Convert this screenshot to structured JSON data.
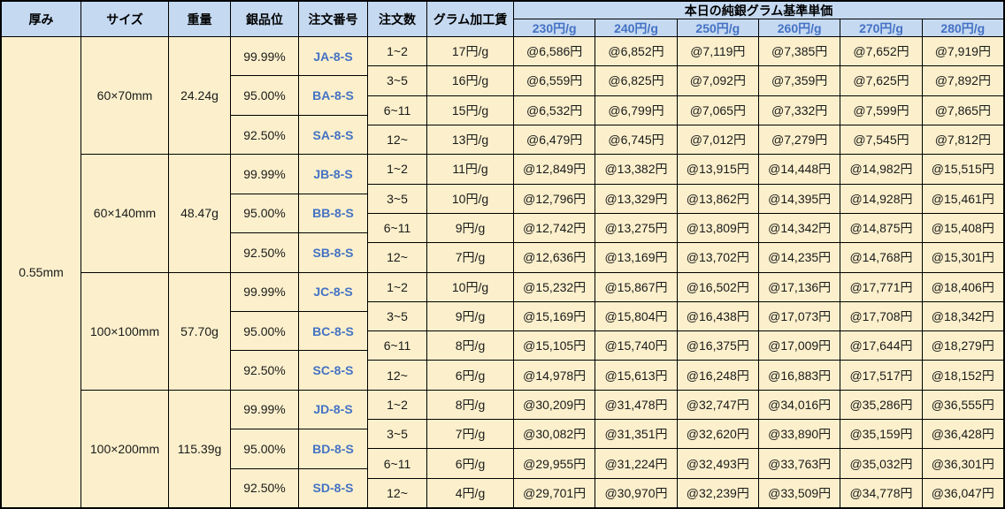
{
  "colors": {
    "header_bg": "#c5d9f1",
    "cell_bg": "#fcf0cc",
    "accent_blue_text": "#4472c4",
    "border": "#000000"
  },
  "table": {
    "headers": {
      "thickness": "厚み",
      "size": "サイズ",
      "weight": "重量",
      "grade": "銀品位",
      "order_no": "注文番号",
      "order_qty": "注文数",
      "fee": "グラム加工賃",
      "price_group": "本日の純銀グラム基準単価",
      "price_columns": [
        "230円/g",
        "240円/g",
        "250円/g",
        "260円/g",
        "270円/g",
        "280円/g"
      ]
    },
    "thickness_value": "0.55mm",
    "blocks": [
      {
        "size": "60×70mm",
        "weight": "24.24g",
        "grades": [
          {
            "purity": "99.99%",
            "order_no": "JA-8-S"
          },
          {
            "purity": "95.00%",
            "order_no": "BA-8-S"
          },
          {
            "purity": "92.50%",
            "order_no": "SA-8-S"
          }
        ],
        "rows": [
          {
            "qty": "1~2",
            "fee": "17円/g",
            "prices": [
              "@6,586円",
              "@6,852円",
              "@7,119円",
              "@7,385円",
              "@7,652円",
              "@7,919円"
            ]
          },
          {
            "qty": "3~5",
            "fee": "16円/g",
            "prices": [
              "@6,559円",
              "@6,825円",
              "@7,092円",
              "@7,359円",
              "@7,625円",
              "@7,892円"
            ]
          },
          {
            "qty": "6~11",
            "fee": "15円/g",
            "prices": [
              "@6,532円",
              "@6,799円",
              "@7,065円",
              "@7,332円",
              "@7,599円",
              "@7,865円"
            ]
          },
          {
            "qty": "12~",
            "fee": "13円/g",
            "prices": [
              "@6,479円",
              "@6,745円",
              "@7,012円",
              "@7,279円",
              "@7,545円",
              "@7,812円"
            ]
          }
        ]
      },
      {
        "size": "60×140mm",
        "weight": "48.47g",
        "grades": [
          {
            "purity": "99.99%",
            "order_no": "JB-8-S"
          },
          {
            "purity": "95.00%",
            "order_no": "BB-8-S"
          },
          {
            "purity": "92.50%",
            "order_no": "SB-8-S"
          }
        ],
        "rows": [
          {
            "qty": "1~2",
            "fee": "11円/g",
            "prices": [
              "@12,849円",
              "@13,382円",
              "@13,915円",
              "@14,448円",
              "@14,982円",
              "@15,515円"
            ]
          },
          {
            "qty": "3~5",
            "fee": "10円/g",
            "prices": [
              "@12,796円",
              "@13,329円",
              "@13,862円",
              "@14,395円",
              "@14,928円",
              "@15,461円"
            ]
          },
          {
            "qty": "6~11",
            "fee": "9円/g",
            "prices": [
              "@12,742円",
              "@13,275円",
              "@13,809円",
              "@14,342円",
              "@14,875円",
              "@15,408円"
            ]
          },
          {
            "qty": "12~",
            "fee": "7円/g",
            "prices": [
              "@12,636円",
              "@13,169円",
              "@13,702円",
              "@14,235円",
              "@14,768円",
              "@15,301円"
            ]
          }
        ]
      },
      {
        "size": "100×100mm",
        "weight": "57.70g",
        "grades": [
          {
            "purity": "99.99%",
            "order_no": "JC-8-S"
          },
          {
            "purity": "95.00%",
            "order_no": "BC-8-S"
          },
          {
            "purity": "92.50%",
            "order_no": "SC-8-S"
          }
        ],
        "rows": [
          {
            "qty": "1~2",
            "fee": "10円/g",
            "prices": [
              "@15,232円",
              "@15,867円",
              "@16,502円",
              "@17,136円",
              "@17,771円",
              "@18,406円"
            ]
          },
          {
            "qty": "3~5",
            "fee": "9円/g",
            "prices": [
              "@15,169円",
              "@15,804円",
              "@16,438円",
              "@17,073円",
              "@17,708円",
              "@18,342円"
            ]
          },
          {
            "qty": "6~11",
            "fee": "8円/g",
            "prices": [
              "@15,105円",
              "@15,740円",
              "@16,375円",
              "@17,009円",
              "@17,644円",
              "@18,279円"
            ]
          },
          {
            "qty": "12~",
            "fee": "6円/g",
            "prices": [
              "@14,978円",
              "@15,613円",
              "@16,248円",
              "@16,883円",
              "@17,517円",
              "@18,152円"
            ]
          }
        ]
      },
      {
        "size": "100×200mm",
        "weight": "115.39g",
        "grades": [
          {
            "purity": "99.99%",
            "order_no": "JD-8-S"
          },
          {
            "purity": "95.00%",
            "order_no": "BD-8-S"
          },
          {
            "purity": "92.50%",
            "order_no": "SD-8-S"
          }
        ],
        "rows": [
          {
            "qty": "1~2",
            "fee": "8円/g",
            "prices": [
              "@30,209円",
              "@31,478円",
              "@32,747円",
              "@34,016円",
              "@35,286円",
              "@36,555円"
            ]
          },
          {
            "qty": "3~5",
            "fee": "7円/g",
            "prices": [
              "@30,082円",
              "@31,351円",
              "@32,620円",
              "@33,890円",
              "@35,159円",
              "@36,428円"
            ]
          },
          {
            "qty": "6~11",
            "fee": "6円/g",
            "prices": [
              "@29,955円",
              "@31,224円",
              "@32,493円",
              "@33,763円",
              "@35,032円",
              "@36,301円"
            ]
          },
          {
            "qty": "12~",
            "fee": "4円/g",
            "prices": [
              "@29,701円",
              "@30,970円",
              "@32,239円",
              "@33,509円",
              "@34,778円",
              "@36,047円"
            ]
          }
        ]
      }
    ]
  }
}
